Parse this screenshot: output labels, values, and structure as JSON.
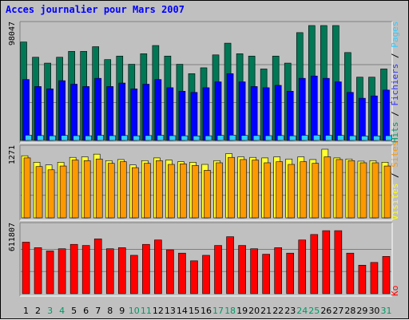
{
  "chart_data": {
    "type": "bar",
    "title": "Acces journalier pour Mars 2007",
    "categories": [
      "1",
      "2",
      "3",
      "4",
      "5",
      "6",
      "7",
      "8",
      "9",
      "10",
      "11",
      "12",
      "13",
      "14",
      "15",
      "16",
      "17",
      "18",
      "19",
      "20",
      "21",
      "22",
      "23",
      "24",
      "25",
      "26",
      "27",
      "28",
      "29",
      "30",
      "31"
    ],
    "weekend_days": [
      "3",
      "4",
      "10",
      "11",
      "17",
      "18",
      "24",
      "25",
      "31"
    ],
    "panels": [
      {
        "id": "top",
        "max_label": "98047",
        "ylim": [
          0,
          98047
        ],
        "legend": [
          {
            "text": "Pages",
            "color": "#33ccff"
          },
          {
            "text": " / ",
            "color": "#000000"
          },
          {
            "text": "Fichiers",
            "color": "#3333ff"
          },
          {
            "text": " / ",
            "color": "#000000"
          },
          {
            "text": "Hits",
            "color": "#009966"
          }
        ],
        "series": [
          {
            "name": "Hits",
            "color": "#007755",
            "values": [
              84000,
              71000,
              66000,
              71000,
              76000,
              76000,
              80000,
              69000,
              72000,
              65000,
              74000,
              81000,
              72000,
              65000,
              57000,
              62000,
              73000,
              83000,
              74000,
              72000,
              61000,
              72000,
              66000,
              92000,
              98047,
              98047,
              98047,
              75000,
              54000,
              54000,
              61000
            ]
          },
          {
            "name": "Fichiers",
            "color": "#0000ff",
            "values": [
              52000,
              46000,
              44000,
              51000,
              48000,
              46000,
              53000,
              46000,
              49000,
              44000,
              48000,
              52000,
              45000,
              42000,
              41000,
              45000,
              50000,
              57000,
              50000,
              46000,
              45000,
              47000,
              42000,
              53000,
              55000,
              53000,
              50000,
              41000,
              36000,
              38000,
              43000
            ]
          },
          {
            "name": "Pages",
            "color": "#33ccff",
            "values": [
              4500,
              4200,
              4000,
              4300,
              4100,
              4000,
              4400,
              4100,
              4200,
              4000,
              4200,
              4400,
              4100,
              4000,
              3900,
              4000,
              4300,
              4500,
              4300,
              4200,
              4100,
              4200,
              4000,
              4400,
              4500,
              4400,
              4300,
              4000,
              3800,
              3900,
              4100
            ]
          }
        ]
      },
      {
        "id": "middle",
        "max_label": "1271",
        "ylim": [
          0,
          1271
        ],
        "legend": [
          {
            "text": "Sites",
            "color": "#ff9900"
          },
          {
            "text": " / ",
            "color": "#000000"
          },
          {
            "text": "Visites",
            "color": "#ffff00"
          }
        ],
        "series": [
          {
            "name": "Visites",
            "color": "#ffff33",
            "values": [
              1150,
              1030,
              980,
              1030,
              1120,
              1130,
              1180,
              1060,
              1080,
              980,
              1060,
              1110,
              1070,
              1040,
              1030,
              990,
              1060,
              1190,
              1130,
              1120,
              1110,
              1130,
              1090,
              1130,
              1080,
              1271,
              1110,
              1090,
              1050,
              1060,
              1030
            ]
          },
          {
            "name": "Sites",
            "color": "#ff9900",
            "values": [
              1110,
              950,
              890,
              960,
              1070,
              1060,
              1090,
              1010,
              1040,
              930,
              1010,
              1060,
              990,
              1000,
              970,
              880,
              1020,
              1120,
              1080,
              1070,
              1020,
              1040,
              990,
              1040,
              1010,
              1130,
              1080,
              1060,
              1020,
              1020,
              960
            ]
          }
        ]
      },
      {
        "id": "bottom",
        "max_label": "611807",
        "ylim": [
          0,
          611807
        ],
        "legend": [
          {
            "text": "Ko",
            "color": "#ff0000"
          }
        ],
        "series": [
          {
            "name": "Ko",
            "color": "#ff0000",
            "values": [
              470000,
              420000,
              390000,
              410000,
              450000,
              440000,
              500000,
              410000,
              420000,
              350000,
              450000,
              490000,
              400000,
              370000,
              300000,
              350000,
              440000,
              520000,
              440000,
              410000,
              360000,
              420000,
              370000,
              490000,
              540000,
              575000,
              575000,
              370000,
              260000,
              285000,
              340000
            ]
          }
        ]
      }
    ],
    "grid": true
  }
}
